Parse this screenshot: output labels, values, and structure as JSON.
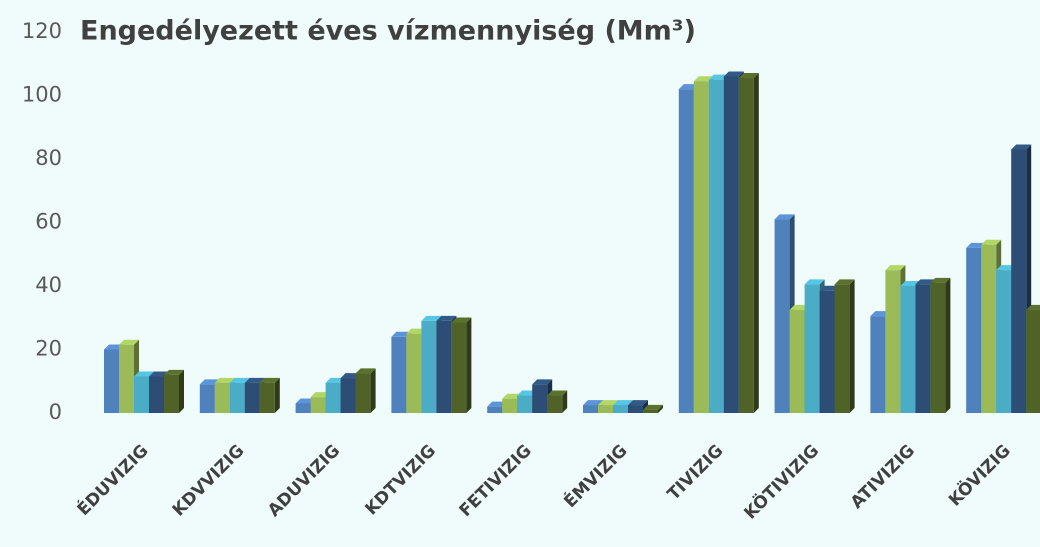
{
  "chart_data": {
    "type": "bar3d",
    "title": "Engedélyezett éves vízmennyiség (Mm³)",
    "categories": [
      "ÉDUVIZIG",
      "KDVVIZIG",
      "ADUVIZIG",
      "KDTVIZIG",
      "FETIVIZIG",
      "ÉMVIZIG",
      "TIVIZIG",
      "KÖTIVIZIG",
      "ATIVIZIG",
      "KÖVIZIG"
    ],
    "series": [
      {
        "color": "#4f81bd",
        "values": [
          20,
          9,
          3,
          24,
          2,
          2.5,
          102,
          61,
          30.5,
          52
        ]
      },
      {
        "color": "#9bbb59",
        "values": [
          21.5,
          9.5,
          5,
          25,
          4.5,
          2.5,
          104.5,
          32.5,
          45,
          53
        ]
      },
      {
        "color": "#4bacc6",
        "values": [
          11.5,
          9.5,
          9.5,
          29,
          5.5,
          2.5,
          105,
          40.5,
          40,
          45
        ]
      },
      {
        "color": "#2c4d75",
        "values": [
          11.5,
          9.5,
          11,
          29,
          9,
          2.5,
          106,
          38.5,
          40.5,
          83
        ]
      },
      {
        "color": "#4f6228",
        "values": [
          12,
          9.5,
          12.5,
          28.5,
          5.5,
          1,
          105.5,
          40.5,
          41,
          32.5
        ]
      }
    ],
    "ylim": [
      0,
      120
    ],
    "yticks": [
      0,
      20,
      40,
      60,
      80,
      100,
      120
    ]
  }
}
